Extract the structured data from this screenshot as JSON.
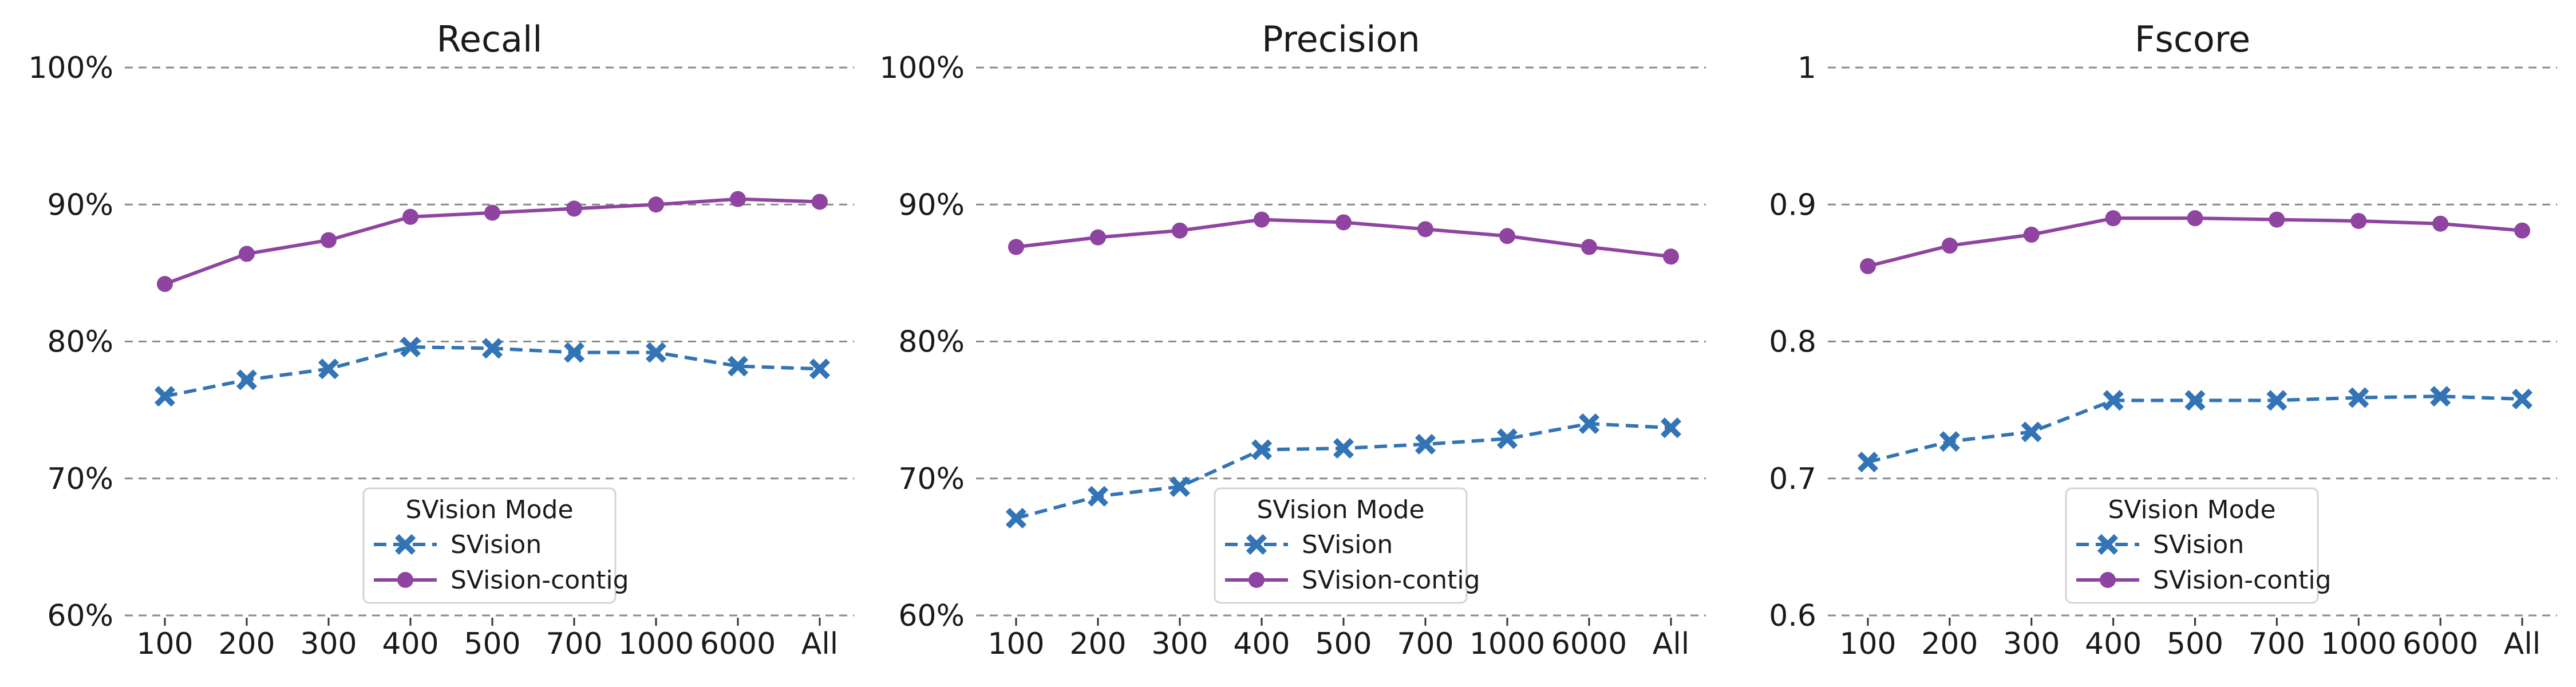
{
  "chart_data": [
    {
      "type": "line",
      "title": "Recall",
      "categories": [
        "100",
        "200",
        "300",
        "400",
        "500",
        "700",
        "1000",
        "6000",
        "All"
      ],
      "yticks": [
        "60%",
        "70%",
        "80%",
        "90%",
        "100%"
      ],
      "ylim": [
        0.6,
        1.0
      ],
      "grid": "horizontal dashed",
      "legend": {
        "title": "SVision Mode",
        "placement": "lower-center"
      },
      "series": [
        {
          "name": "SVision",
          "color": "#3274b5",
          "linestyle": "dashed",
          "marker": "x-filled",
          "values": [
            0.76,
            0.772,
            0.78,
            0.796,
            0.795,
            0.792,
            0.792,
            0.782,
            0.78
          ]
        },
        {
          "name": "SVision-contig",
          "color": "#8e44a0",
          "linestyle": "solid",
          "marker": "circle",
          "values": [
            0.842,
            0.864,
            0.874,
            0.891,
            0.894,
            0.897,
            0.9,
            0.904,
            0.902
          ]
        }
      ]
    },
    {
      "type": "line",
      "title": "Precision",
      "categories": [
        "100",
        "200",
        "300",
        "400",
        "500",
        "700",
        "1000",
        "6000",
        "All"
      ],
      "yticks": [
        "60%",
        "70%",
        "80%",
        "90%",
        "100%"
      ],
      "ylim": [
        0.6,
        1.0
      ],
      "grid": "horizontal dashed",
      "legend": {
        "title": "SVision Mode",
        "placement": "lower-center"
      },
      "series": [
        {
          "name": "SVision",
          "color": "#3274b5",
          "linestyle": "dashed",
          "marker": "x-filled",
          "values": [
            0.671,
            0.687,
            0.694,
            0.721,
            0.722,
            0.725,
            0.729,
            0.74,
            0.737
          ]
        },
        {
          "name": "SVision-contig",
          "color": "#8e44a0",
          "linestyle": "solid",
          "marker": "circle",
          "values": [
            0.869,
            0.876,
            0.881,
            0.889,
            0.887,
            0.882,
            0.877,
            0.869,
            0.862
          ]
        }
      ]
    },
    {
      "type": "line",
      "title": "Fscore",
      "categories": [
        "100",
        "200",
        "300",
        "400",
        "500",
        "700",
        "1000",
        "6000",
        "All"
      ],
      "yticks": [
        "0.6",
        "0.7",
        "0.8",
        "0.9",
        "1"
      ],
      "ylim": [
        0.6,
        1.0
      ],
      "grid": "horizontal dashed",
      "legend": {
        "title": "SVision Mode",
        "placement": "lower-center"
      },
      "series": [
        {
          "name": "SVision",
          "color": "#3274b5",
          "linestyle": "dashed",
          "marker": "x-filled",
          "values": [
            0.712,
            0.727,
            0.734,
            0.757,
            0.757,
            0.757,
            0.759,
            0.76,
            0.758
          ]
        },
        {
          "name": "SVision-contig",
          "color": "#8e44a0",
          "linestyle": "solid",
          "marker": "circle",
          "values": [
            0.855,
            0.87,
            0.878,
            0.89,
            0.89,
            0.889,
            0.888,
            0.886,
            0.881
          ]
        }
      ]
    }
  ]
}
